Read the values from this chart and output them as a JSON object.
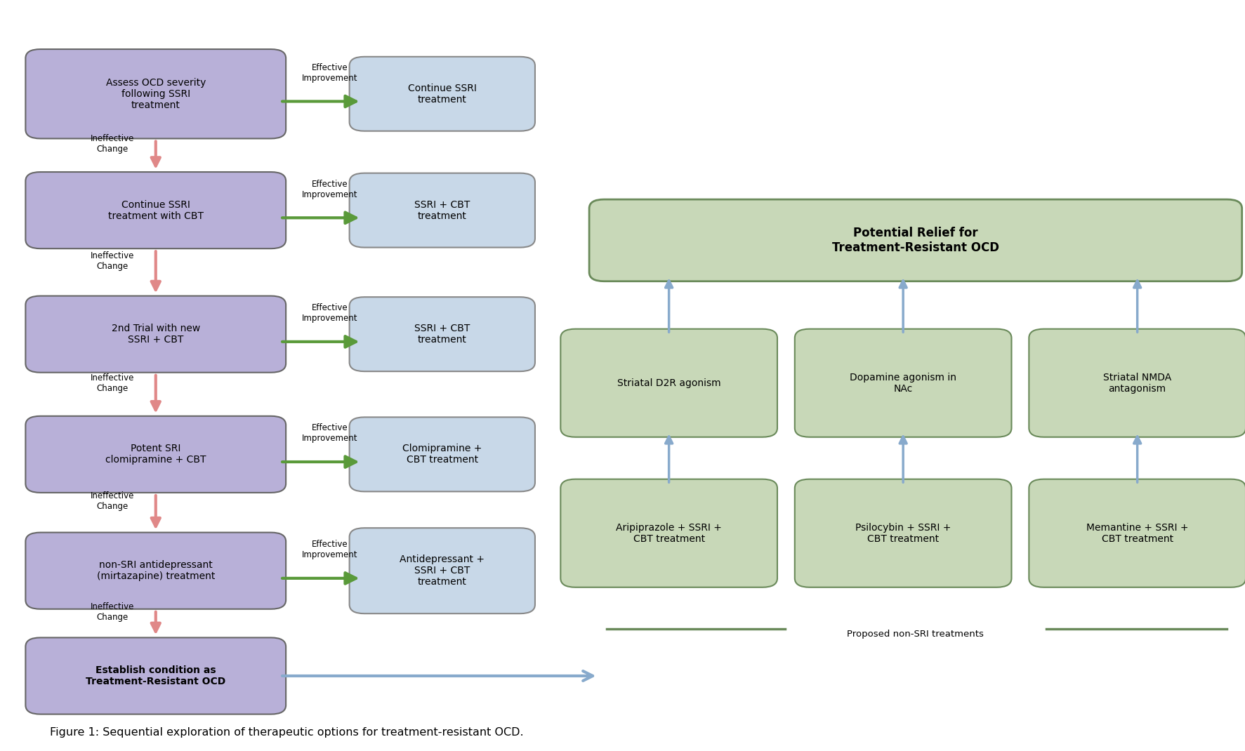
{
  "fig_width": 17.74,
  "fig_height": 10.7,
  "bg_color": "#ffffff",
  "left_box_color": "#b8b0d8",
  "left_box_edge": "#666666",
  "right_box_color": "#c8d8e8",
  "right_box_edge": "#888888",
  "green_box_color": "#c8d8b8",
  "green_box_edge": "#6a8a5a",
  "green_arrow_color": "#5a9a3a",
  "red_arrow_color": "#e08888",
  "blue_arrow_color": "#88aacc",
  "left_boxes": [
    {
      "text": "Assess OCD severity\nfollowing SSRI\ntreatment",
      "bold": false
    },
    {
      "text": "Continue SSRI\ntreatment with CBT",
      "bold": false
    },
    {
      "text": "2nd Trial with new\nSSRI + CBT",
      "bold": false
    },
    {
      "text": "Potent SRI\nclomipramine + CBT",
      "bold": false
    },
    {
      "text": "non-SRI antidepressant\n(mirtazapine) treatment",
      "bold": false
    },
    {
      "text": "Establish condition as\nTreatment-Resistant OCD",
      "bold": true
    }
  ],
  "outcome_boxes": [
    {
      "text": "Continue SSRI\ntreatment"
    },
    {
      "text": "SSRI + CBT\ntreatment"
    },
    {
      "text": "SSRI + CBT\ntreatment"
    },
    {
      "text": "Clomipramine +\nCBT treatment"
    },
    {
      "text": "Antidepressant +\nSSRI + CBT\ntreatment"
    }
  ],
  "mech_boxes": [
    "Striatal D2R agonism",
    "Dopamine agonism in\nNAc",
    "Striatal NMDA\nantagonism"
  ],
  "treat_boxes": [
    "Aripiprazole + SSRI +\nCBT treatment",
    "Psilocybin + SSRI +\nCBT treatment",
    "Memantine + SSRI +\nCBT treatment"
  ],
  "potential_relief_text": "Potential Relief for\nTreatment-Resistant OCD",
  "proposed_label": "Proposed non-SRI treatments",
  "caption": "Figure 1: Sequential exploration of therapeutic options for treatment-resistant OCD."
}
